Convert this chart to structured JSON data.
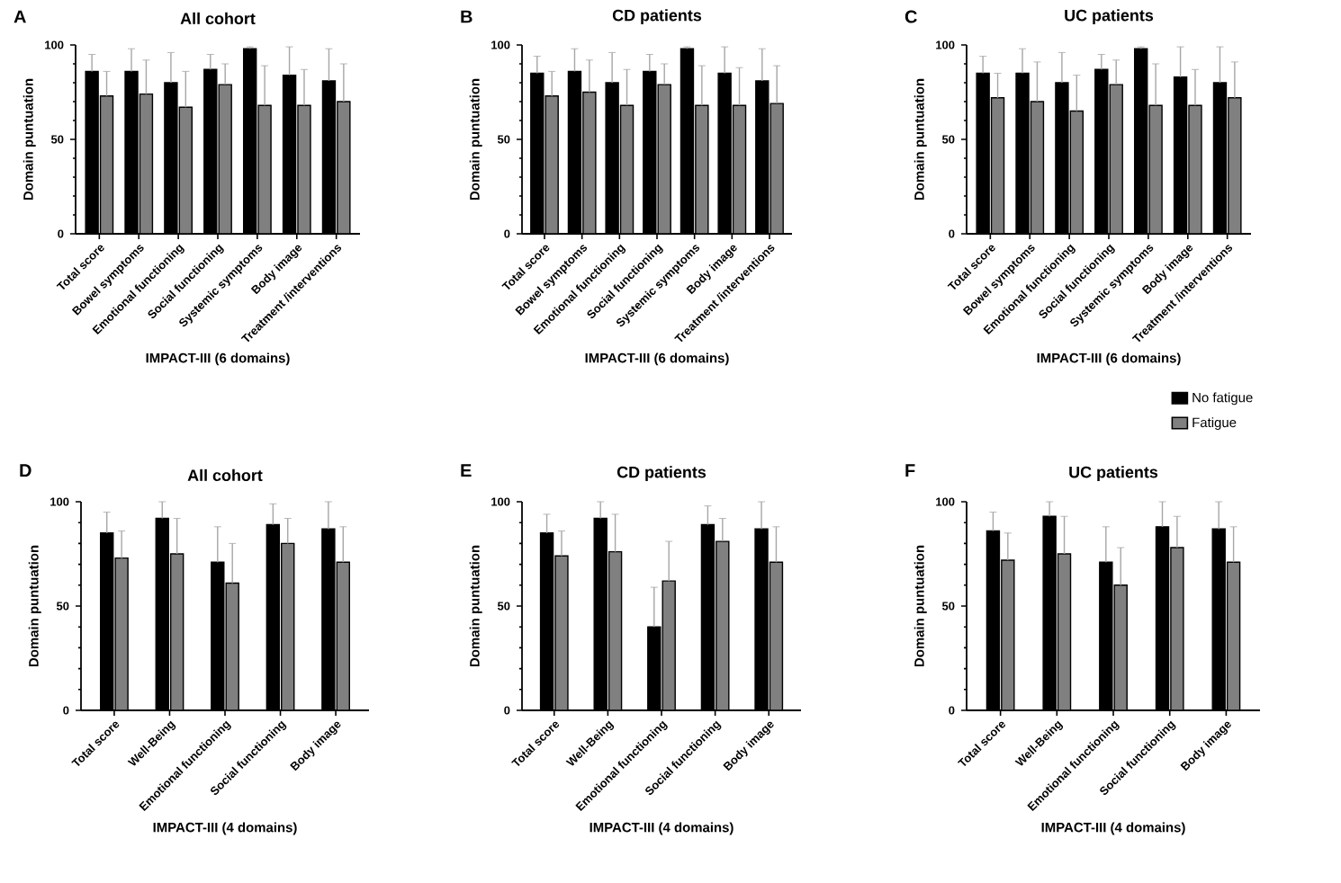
{
  "chart_data": [
    {
      "type": "bar",
      "title": "All cohort",
      "xlabel": "IMPACT-III (6 domains)",
      "ylabel": "Domain puntuation",
      "annotations": [
        "A"
      ],
      "categories": [
        "Total score",
        "Bowel symptoms",
        "Emotional functioning",
        "Social functioning",
        "Systemic symptoms",
        "Body image",
        "Treatment /interventions"
      ],
      "ylim": [
        0,
        100
      ],
      "yticks": [
        0,
        50,
        100
      ],
      "series": [
        {
          "color": "#000000",
          "values": [
            86,
            86,
            80,
            87,
            98,
            84,
            81
          ],
          "errors": [
            [
              86,
              95
            ],
            [
              86,
              98
            ],
            [
              80,
              96
            ],
            [
              87,
              95
            ],
            [
              98,
              99
            ],
            [
              84,
              99
            ],
            [
              81,
              98
            ]
          ]
        },
        {
          "color": "#808080",
          "values": [
            73,
            74,
            67,
            79,
            68,
            68,
            70
          ],
          "errors": [
            [
              73,
              86
            ],
            [
              74,
              92
            ],
            [
              67,
              86
            ],
            [
              79,
              90
            ],
            [
              68,
              89
            ],
            [
              68,
              87
            ],
            [
              70,
              90
            ]
          ]
        }
      ]
    },
    {
      "type": "bar",
      "title": "CD patients",
      "xlabel": "IMPACT-III (6 domains)",
      "ylabel": "Domain puntuation",
      "annotations": [
        "B"
      ],
      "categories": [
        "Total score",
        "Bowel symptoms",
        "Emotional functioning",
        "Social functioning",
        "Systemic symptoms",
        "Body image",
        "Treatment /interventions"
      ],
      "ylim": [
        0,
        100
      ],
      "yticks": [
        0,
        50,
        100
      ],
      "series": [
        {
          "color": "#000000",
          "values": [
            85,
            86,
            80,
            86,
            98,
            85,
            81
          ],
          "errors": [
            [
              85,
              94
            ],
            [
              86,
              98
            ],
            [
              80,
              96
            ],
            [
              86,
              95
            ],
            [
              98,
              99
            ],
            [
              85,
              99
            ],
            [
              81,
              98
            ]
          ]
        },
        {
          "color": "#808080",
          "values": [
            73,
            75,
            68,
            79,
            68,
            68,
            69
          ],
          "errors": [
            [
              73,
              86
            ],
            [
              75,
              92
            ],
            [
              68,
              87
            ],
            [
              79,
              90
            ],
            [
              68,
              89
            ],
            [
              68,
              88
            ],
            [
              69,
              89
            ]
          ]
        }
      ]
    },
    {
      "type": "bar",
      "title": "UC patients",
      "xlabel": "IMPACT-III (6 domains)",
      "ylabel": "Domain puntuation",
      "annotations": [
        "C"
      ],
      "categories": [
        "Total score",
        "Bowel symptoms",
        "Emotional functioning",
        "Social functioning",
        "Systemic symptoms",
        "Body image",
        "Treatment /interventions"
      ],
      "ylim": [
        0,
        100
      ],
      "yticks": [
        0,
        50,
        100
      ],
      "legend": "bottom right",
      "series": [
        {
          "name": "No fatigue",
          "color": "#000000",
          "values": [
            85,
            85,
            80,
            87,
            98,
            83,
            80
          ],
          "errors": [
            [
              85,
              94
            ],
            [
              85,
              98
            ],
            [
              80,
              96
            ],
            [
              87,
              95
            ],
            [
              98,
              99
            ],
            [
              83,
              99
            ],
            [
              80,
              99
            ]
          ]
        },
        {
          "name": "Fatigue",
          "color": "#808080",
          "values": [
            72,
            70,
            65,
            79,
            68,
            68,
            72
          ],
          "errors": [
            [
              72,
              85
            ],
            [
              70,
              91
            ],
            [
              65,
              84
            ],
            [
              79,
              92
            ],
            [
              68,
              90
            ],
            [
              68,
              87
            ],
            [
              72,
              91
            ]
          ]
        }
      ]
    },
    {
      "type": "bar",
      "title": "All cohort",
      "xlabel": "IMPACT-III (4 domains)",
      "ylabel": "Domain puntuation",
      "annotations": [
        "D"
      ],
      "categories": [
        "Total score",
        "Well-Being",
        "Emotional functioning",
        "Social functioning",
        "Body image"
      ],
      "ylim": [
        0,
        100
      ],
      "yticks": [
        0,
        50,
        100
      ],
      "series": [
        {
          "color": "#000000",
          "values": [
            85,
            92,
            71,
            89,
            87
          ],
          "errors": [
            [
              85,
              95
            ],
            [
              92,
              100
            ],
            [
              71,
              88
            ],
            [
              89,
              99
            ],
            [
              87,
              100
            ]
          ]
        },
        {
          "color": "#808080",
          "values": [
            73,
            75,
            61,
            80,
            71
          ],
          "errors": [
            [
              73,
              86
            ],
            [
              75,
              92
            ],
            [
              61,
              80
            ],
            [
              80,
              92
            ],
            [
              71,
              88
            ]
          ]
        }
      ]
    },
    {
      "type": "bar",
      "title": "CD patients",
      "xlabel": "IMPACT-III (4 domains)",
      "ylabel": "Domain puntuation",
      "annotations": [
        "E"
      ],
      "categories": [
        "Total score",
        "Well-Being",
        "Emotional functioning",
        "Social functioning",
        "Body image"
      ],
      "ylim": [
        0,
        100
      ],
      "yticks": [
        0,
        50,
        100
      ],
      "series": [
        {
          "color": "#000000",
          "values": [
            85,
            92,
            40,
            89,
            87
          ],
          "errors": [
            [
              85,
              94
            ],
            [
              92,
              100
            ],
            [
              40,
              59
            ],
            [
              89,
              98
            ],
            [
              87,
              100
            ]
          ]
        },
        {
          "color": "#808080",
          "values": [
            74,
            76,
            62,
            81,
            71
          ],
          "errors": [
            [
              74,
              86
            ],
            [
              76,
              94
            ],
            [
              62,
              81
            ],
            [
              81,
              92
            ],
            [
              71,
              88
            ]
          ]
        }
      ]
    },
    {
      "type": "bar",
      "title": "UC patients",
      "xlabel": "IMPACT-III (4 domains)",
      "ylabel": "Domain puntuation",
      "annotations": [
        "F"
      ],
      "categories": [
        "Total score",
        "Well-Being",
        "Emotional functioning",
        "Social functioning",
        "Body image"
      ],
      "ylim": [
        0,
        100
      ],
      "yticks": [
        0,
        50,
        100
      ],
      "series": [
        {
          "color": "#000000",
          "values": [
            86,
            93,
            71,
            88,
            87
          ],
          "errors": [
            [
              86,
              95
            ],
            [
              93,
              100
            ],
            [
              71,
              88
            ],
            [
              88,
              100
            ],
            [
              87,
              100
            ]
          ]
        },
        {
          "color": "#808080",
          "values": [
            72,
            75,
            60,
            78,
            71
          ],
          "errors": [
            [
              72,
              85
            ],
            [
              75,
              93
            ],
            [
              60,
              78
            ],
            [
              78,
              93
            ],
            [
              71,
              88
            ]
          ]
        }
      ]
    }
  ]
}
